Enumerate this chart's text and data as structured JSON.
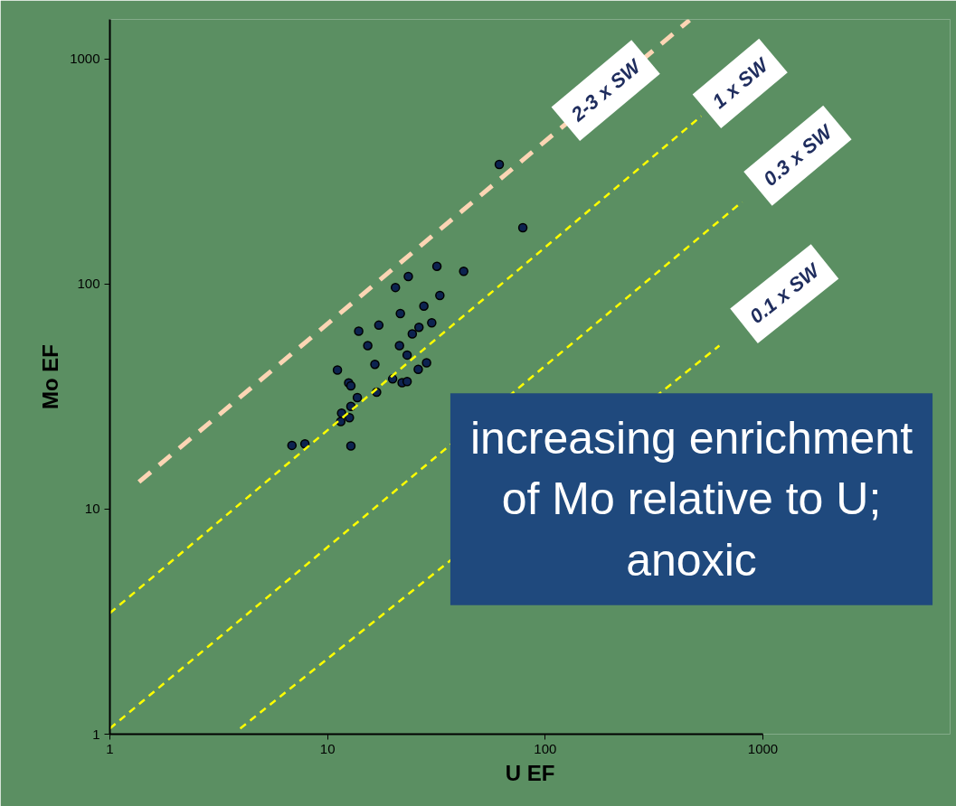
{
  "chart_data": {
    "type": "scatter",
    "xlabel": "U EF",
    "ylabel": "Mo EF",
    "log": "xy",
    "grid": false,
    "xlim": [
      1,
      1000
    ],
    "ylim": [
      1,
      1500
    ],
    "xticks": [
      1,
      10,
      100,
      1000
    ],
    "yticks": [
      1,
      10,
      100,
      1000
    ],
    "annotations": [
      "increasing enrichment of Mo relative to U; anoxic"
    ],
    "series": [
      {
        "marker": "circle",
        "color": "#0d2350",
        "x": [
          61.5,
          78.9,
          42.2,
          31.8,
          23.5,
          32.8,
          20.5,
          27.7,
          21.6,
          30.1,
          26.3,
          24.5,
          17.2,
          13.9,
          15.3,
          21.4,
          23.2,
          16.5,
          28.5,
          26.1,
          11.1,
          12.5,
          12.8,
          19.9,
          22.0,
          23.2,
          16.8,
          13.7,
          12.8,
          11.6,
          12.6,
          11.5,
          6.86,
          7.87,
          12.8
        ],
        "values": [
          340,
          178,
          114,
          120,
          108,
          89,
          96.6,
          79.8,
          74,
          67.3,
          64.3,
          60.1,
          65.7,
          61.8,
          53.3,
          53.3,
          48.4,
          44.0,
          44.7,
          41.8,
          41.5,
          36.4,
          35.3,
          37.9,
          36.5,
          36.9,
          33.1,
          31.3,
          28.6,
          26.7,
          25.5,
          24.5,
          19.2,
          19.5,
          19.1
        ]
      },
      {
        "type": "line",
        "name": "2-3 x SW",
        "color": "#fcd5b4",
        "line_style": "dashed",
        "x": [
          1.36,
          460
        ],
        "values": [
          13.2,
          1489
        ]
      },
      {
        "type": "line",
        "name": "1 x SW",
        "color": "#ffff00",
        "line_style": "dashed",
        "x": [
          1,
          521
        ],
        "values": [
          3.45,
          558
        ]
      },
      {
        "type": "line",
        "name": "0.3 x SW",
        "color": "#ffff00",
        "line_style": "dashed",
        "x": [
          1,
          802
        ],
        "values": [
          1.06,
          232
        ]
      },
      {
        "type": "line",
        "name": "0.1 x SW",
        "color": "#ffff00",
        "line_style": "dashed",
        "x": [
          3.97,
          631
        ],
        "values": [
          1.06,
          53.3
        ]
      }
    ]
  }
}
